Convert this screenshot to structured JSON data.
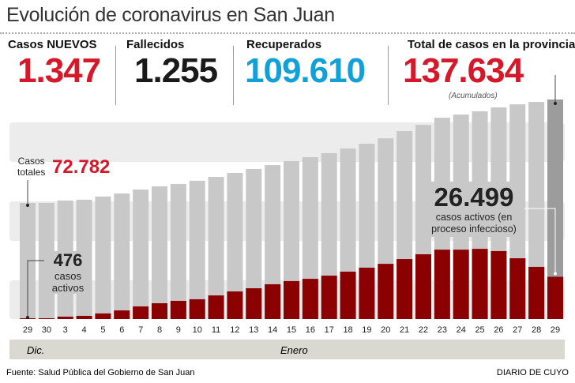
{
  "title": "Evolución de coronavirus en San Juan",
  "stats": [
    {
      "label": "Casos NUEVOS",
      "value": "1.347",
      "color": "#d5182a"
    },
    {
      "label": "Fallecidos",
      "value": "1.255",
      "color": "#1a1a1a"
    },
    {
      "label": "Recuperados",
      "value": "109.610",
      "color": "#12a0d9"
    },
    {
      "label": "Total de casos en la provincia",
      "value": "137.634",
      "color": "#d5182a",
      "note": "(Acumulados)"
    }
  ],
  "chart_data": {
    "type": "bar",
    "stacked": "overlay",
    "categories": [
      "29",
      "30",
      "3",
      "4",
      "5",
      "6",
      "7",
      "8",
      "9",
      "10",
      "11",
      "12",
      "13",
      "14",
      "15",
      "16",
      "17",
      "18",
      "19",
      "20",
      "21",
      "22",
      "23",
      "24",
      "25",
      "26",
      "27",
      "28",
      "29"
    ],
    "month_groups": [
      {
        "label": "Dic.",
        "count": 2
      },
      {
        "label": "Enero",
        "count": 27
      }
    ],
    "series": [
      {
        "name": "Casos totales",
        "color": "#c8c8c8",
        "values": [
          72782,
          72800,
          74300,
          74800,
          76800,
          78700,
          81200,
          83200,
          84700,
          86700,
          89100,
          91600,
          94100,
          96500,
          99000,
          101500,
          104000,
          106900,
          109900,
          113300,
          117800,
          121700,
          126200,
          128200,
          130200,
          132700,
          134600,
          136100,
          137634
        ]
      },
      {
        "name": "casos activos",
        "color": "#8b0000",
        "values": [
          476,
          500,
          1500,
          2000,
          3500,
          5400,
          7900,
          9900,
          11400,
          12400,
          14800,
          17300,
          19300,
          21800,
          23800,
          25200,
          27200,
          29700,
          32200,
          34600,
          37600,
          40600,
          43500,
          43500,
          44000,
          42600,
          38100,
          32700,
          26499
        ]
      }
    ],
    "ylim": [
      0,
      137634
    ],
    "grid": false,
    "annotations": {
      "first_total": {
        "label_line1": "Casos",
        "label_line2": "totales",
        "value": "72.782"
      },
      "first_active": {
        "value": "476",
        "line1": "casos",
        "line2": "activos"
      },
      "last_active": {
        "value": "26.499",
        "line1": "casos activos (en",
        "line2": "proceso infeccioso)"
      }
    }
  },
  "footer": {
    "source": "Fuente: Salud Pública del Gobierno de San Juan",
    "brand": "DIARIO DE CUYO"
  }
}
